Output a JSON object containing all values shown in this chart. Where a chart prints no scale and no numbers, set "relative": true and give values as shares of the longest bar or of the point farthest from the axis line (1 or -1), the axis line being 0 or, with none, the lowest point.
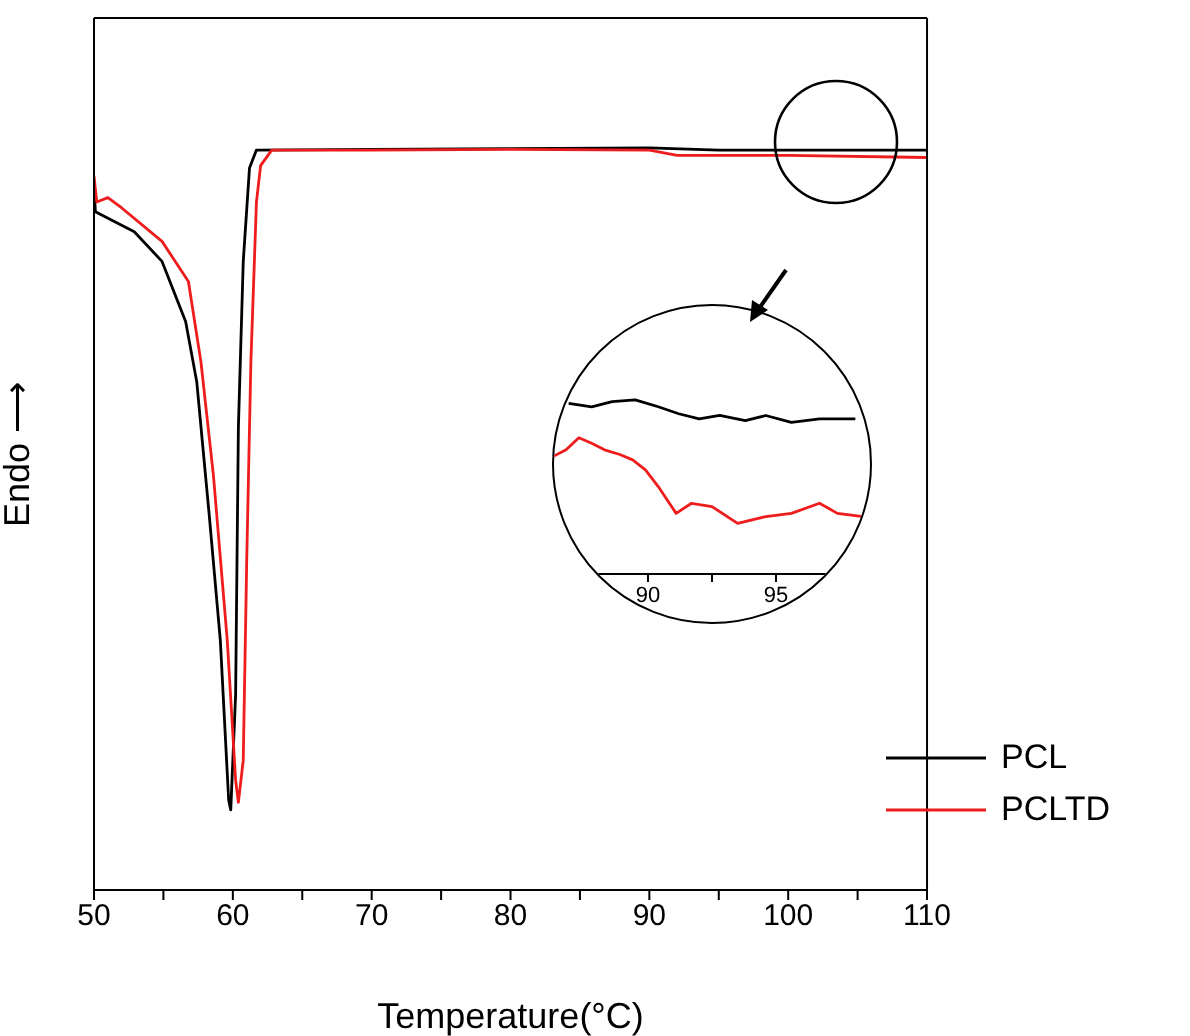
{
  "chart_data": [
    {
      "type": "line",
      "relative": true,
      "xlabel": "Temperature(°C)",
      "ylabel": "Endo ⟶",
      "xlim": [
        50,
        110
      ],
      "xticks": [
        50,
        {
          "value": 55,
          "label": null
        },
        60,
        {
          "value": 65,
          "label": null
        },
        70,
        {
          "value": 75,
          "label": null
        },
        80,
        {
          "value": 85,
          "label": null
        },
        90,
        {
          "value": 95,
          "label": null
        },
        100,
        {
          "value": 105,
          "label": null
        },
        110
      ],
      "legend": "bottom right",
      "series": [
        {
          "name": "PCL",
          "color": "#000000",
          "x": [
            50,
            50.1,
            52.9,
            54.9,
            56.6,
            57.4,
            58.3,
            59.1,
            59.7,
            59.85,
            60.2,
            60.4,
            60.75,
            61.2,
            61.7,
            70,
            80,
            90,
            95,
            100,
            110
          ],
          "values": [
            0.946,
            0.914,
            0.887,
            0.847,
            0.766,
            0.685,
            0.505,
            0.336,
            0.121,
            0.108,
            0.263,
            0.624,
            0.847,
            0.973,
            0.997,
            0.998,
            0.999,
            1.0,
            0.997,
            0.997,
            0.997
          ]
        },
        {
          "name": "PCLTD",
          "color": "#ee1c1c",
          "x": [
            50,
            50.2,
            51,
            52,
            54.9,
            56.8,
            57.7,
            58.6,
            59.6,
            60.2,
            60.4,
            60.75,
            61,
            61.3,
            61.7,
            62,
            62.8,
            70,
            80,
            90,
            92,
            100,
            110
          ],
          "values": [
            0.962,
            0.927,
            0.933,
            0.919,
            0.874,
            0.82,
            0.712,
            0.559,
            0.336,
            0.148,
            0.118,
            0.175,
            0.444,
            0.712,
            0.927,
            0.976,
            0.997,
            0.997,
            0.998,
            0.997,
            0.99,
            0.99,
            0.987
          ]
        }
      ]
    },
    {
      "type": "line",
      "relative": true,
      "tick_labels": "x",
      "xlim": [
        86.25,
        98.75
      ],
      "xticks": [
        90,
        {
          "value": 92.5,
          "label": null
        },
        95,
        {
          "value": 97.5,
          "label": null
        }
      ],
      "series": [
        {
          "color": "#000000",
          "x": [
            86.9,
            87.8,
            88.6,
            89.5,
            90.4,
            91.2,
            92.0,
            92.8,
            93.8,
            94.6,
            95.6,
            96.7,
            98.1
          ],
          "values": [
            0.98,
            0.96,
            0.99,
            1.0,
            0.96,
            0.92,
            0.89,
            0.91,
            0.88,
            0.91,
            0.87,
            0.89,
            0.89
          ]
        },
        {
          "color": "#ee1c1c",
          "x": [
            86.3,
            86.8,
            87.3,
            87.8,
            88.3,
            88.9,
            89.4,
            89.9,
            90.4,
            91.1,
            91.7,
            92.5,
            93.5,
            94.6,
            95.6,
            96.7,
            97.4,
            98.4
          ],
          "values": [
            0.675,
            0.713,
            0.782,
            0.751,
            0.713,
            0.686,
            0.655,
            0.598,
            0.502,
            0.348,
            0.406,
            0.387,
            0.291,
            0.33,
            0.348,
            0.406,
            0.348,
            0.33
          ]
        }
      ]
    }
  ]
}
